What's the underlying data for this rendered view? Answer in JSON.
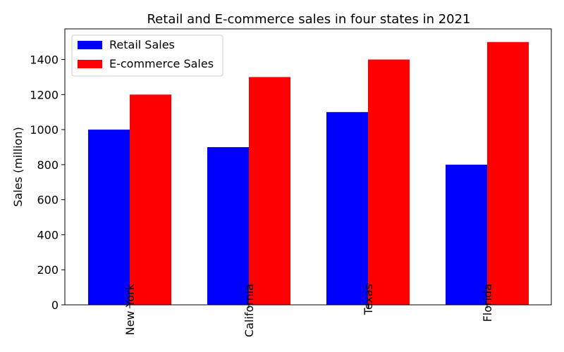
{
  "chart_data": {
    "type": "bar",
    "title": "Retail and E-commerce sales in four states in 2021",
    "xlabel": "",
    "ylabel": "Sales (million)",
    "categories": [
      "New York",
      "California",
      "Texas",
      "Florida"
    ],
    "series": [
      {
        "name": "Retail Sales",
        "values": [
          1000,
          900,
          1100,
          800
        ],
        "color": "#0000ff"
      },
      {
        "name": "E-commerce Sales",
        "values": [
          1200,
          1300,
          1400,
          1500
        ],
        "color": "#ff0000"
      }
    ],
    "ylim": [
      0,
      1575
    ],
    "yticks": [
      0,
      200,
      400,
      600,
      800,
      1000,
      1200,
      1400
    ],
    "grid": false,
    "legend_position": "top-left"
  }
}
